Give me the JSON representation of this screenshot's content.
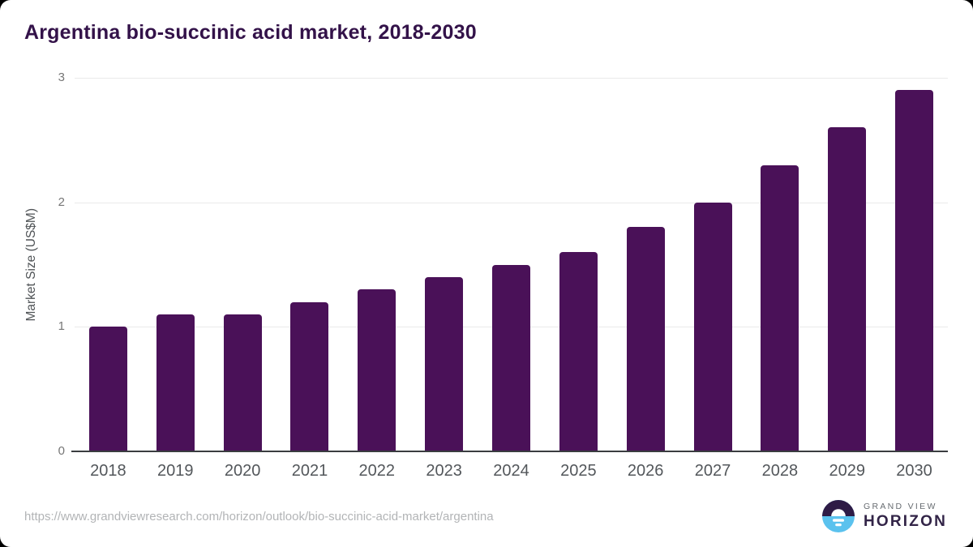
{
  "chart_data": {
    "type": "bar",
    "title": "Argentina bio-succinic acid market, 2018-2030",
    "categories": [
      "2018",
      "2019",
      "2020",
      "2021",
      "2022",
      "2023",
      "2024",
      "2025",
      "2026",
      "2027",
      "2028",
      "2029",
      "2030"
    ],
    "values": [
      1.0,
      1.1,
      1.1,
      1.2,
      1.3,
      1.4,
      1.5,
      1.6,
      1.8,
      2.0,
      2.3,
      2.6,
      2.9
    ],
    "xlabel": "",
    "ylabel": "Market Size (US$M)",
    "ylim": [
      0,
      3
    ],
    "yticks": [
      0,
      1,
      2,
      3
    ],
    "grid": "horizontal-only",
    "legend": "none",
    "bar_color": "#4a1158"
  },
  "colors": {
    "title": "#331249",
    "bar": "#4a1158",
    "axis": "#3a3d40",
    "gridline": "#eaeaea",
    "ytick": "#767676",
    "xtick": "#53575b",
    "ylabel": "#4f5356",
    "url": "#b2b4b6",
    "logo_gray": "#666b70",
    "logo_dark": "#322447",
    "logo_blue": "#5bc2ee",
    "logo_navy": "#2e1b46"
  },
  "footer": {
    "source_url": "https://www.grandviewresearch.com/horizon/outlook/bio-succinic-acid-market/argentina",
    "logo": {
      "line1": "GRAND VIEW",
      "line2": "HORIZON",
      "mark": "horizon-sun-over-water-icon"
    }
  }
}
